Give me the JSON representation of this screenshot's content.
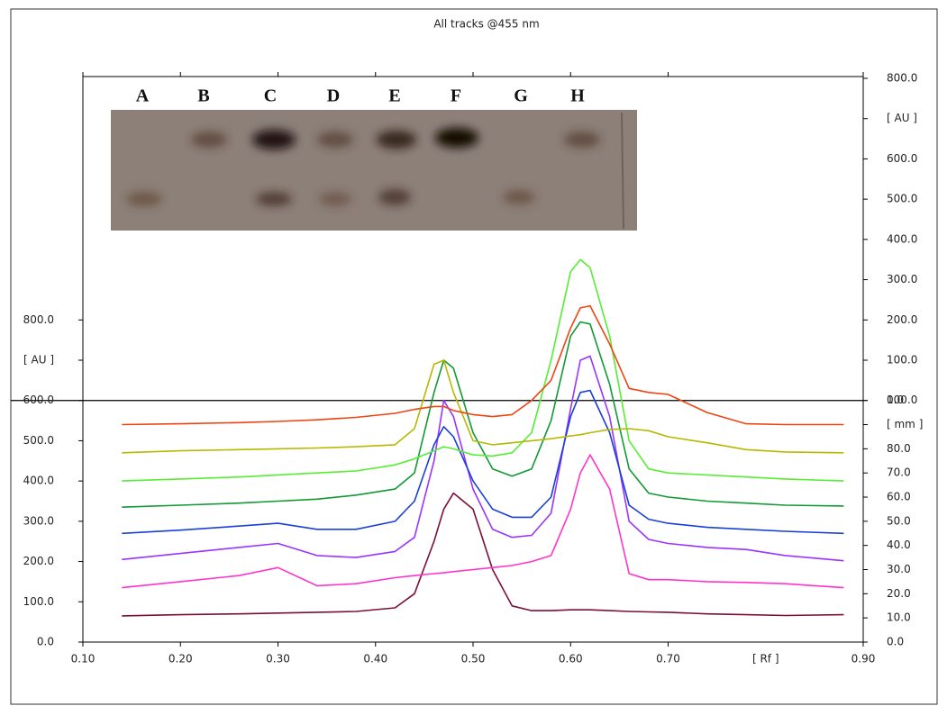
{
  "chart_data": {
    "type": "line",
    "title": "All tracks @455 nm",
    "x_axis_unit": "[ Rf ]",
    "x": [
      0.14,
      0.2,
      0.26,
      0.3,
      0.34,
      0.38,
      0.42,
      0.44,
      0.46,
      0.47,
      0.48,
      0.5,
      0.52,
      0.54,
      0.56,
      0.58,
      0.6,
      0.61,
      0.62,
      0.64,
      0.66,
      0.68,
      0.7,
      0.74,
      0.78,
      0.82,
      0.88
    ],
    "series": [
      {
        "color": "#7a0f3a",
        "values": [
          65,
          68,
          70,
          72,
          74,
          76,
          85,
          120,
          250,
          330,
          370,
          330,
          180,
          90,
          78,
          78,
          80,
          80,
          80,
          78,
          76,
          75,
          74,
          70,
          68,
          66,
          68
        ]
      },
      {
        "color": "#ff33cc",
        "values": [
          135,
          150,
          165,
          185,
          140,
          145,
          160,
          165,
          170,
          172,
          175,
          180,
          185,
          190,
          200,
          215,
          330,
          420,
          465,
          380,
          170,
          155,
          155,
          150,
          148,
          145,
          135
        ]
      },
      {
        "color": "#9933ff",
        "values": [
          205,
          220,
          235,
          245,
          215,
          210,
          225,
          260,
          450,
          600,
          560,
          380,
          280,
          260,
          265,
          320,
          580,
          700,
          710,
          560,
          300,
          255,
          245,
          235,
          230,
          215,
          202
        ]
      },
      {
        "color": "#1a3fd6",
        "values": [
          270,
          278,
          288,
          295,
          280,
          280,
          300,
          350,
          490,
          535,
          510,
          400,
          330,
          310,
          310,
          360,
          560,
          620,
          625,
          520,
          340,
          305,
          295,
          285,
          280,
          275,
          270
        ]
      },
      {
        "color": "#119933",
        "values": [
          335,
          340,
          345,
          350,
          355,
          365,
          380,
          420,
          620,
          700,
          680,
          520,
          430,
          412,
          430,
          550,
          760,
          795,
          790,
          640,
          430,
          370,
          360,
          350,
          345,
          340,
          338
        ]
      },
      {
        "color": "#55ee33",
        "values": [
          400,
          405,
          410,
          415,
          420,
          425,
          440,
          455,
          475,
          485,
          480,
          465,
          462,
          470,
          520,
          700,
          920,
          950,
          930,
          760,
          500,
          430,
          420,
          415,
          410,
          405,
          400
        ]
      },
      {
        "color": "#b8b800",
        "values": [
          470,
          475,
          478,
          480,
          482,
          485,
          490,
          530,
          690,
          700,
          620,
          500,
          490,
          495,
          500,
          505,
          512,
          515,
          520,
          528,
          530,
          525,
          510,
          495,
          478,
          472,
          470
        ]
      },
      {
        "color": "#ee4411",
        "values": [
          540,
          542,
          545,
          548,
          552,
          558,
          568,
          578,
          585,
          585,
          575,
          565,
          560,
          565,
          600,
          650,
          780,
          830,
          835,
          740,
          630,
          620,
          615,
          570,
          542,
          540,
          540
        ]
      }
    ],
    "xlim": [
      0.1,
      0.9
    ],
    "xticks": [
      {
        "value": 0.1,
        "label": "0.10"
      },
      {
        "value": 0.2,
        "label": "0.20"
      },
      {
        "value": 0.3,
        "label": "0.30"
      },
      {
        "value": 0.4,
        "label": "0.40"
      },
      {
        "value": 0.5,
        "label": "0.50"
      },
      {
        "value": 0.6,
        "label": "0.60"
      },
      {
        "value": 0.7,
        "label": "0.70"
      },
      {
        "value": 0.9,
        "label": "0.90"
      }
    ],
    "x_unit_position": 0.8,
    "ylim": [
      0,
      1400
    ],
    "yticks": [
      {
        "value": 0,
        "label": "0.0"
      },
      {
        "value": 100,
        "label": "100.0"
      },
      {
        "value": 200,
        "label": "200.0"
      },
      {
        "value": 300,
        "label": "300.0"
      },
      {
        "value": 400,
        "label": "400.0"
      },
      {
        "value": 500,
        "label": "500.0"
      },
      {
        "value": 600,
        "label": "600.0"
      },
      {
        "value": 700,
        "label": "[ AU ]"
      },
      {
        "value": 800,
        "label": "800.0"
      }
    ],
    "y2lim": [
      0,
      100
    ],
    "y2ticks": [
      {
        "value": 0,
        "label": "0.0"
      },
      {
        "value": 10,
        "label": "10.0"
      },
      {
        "value": 20,
        "label": "20.0"
      },
      {
        "value": 30,
        "label": "30.0"
      },
      {
        "value": 40,
        "label": "40.0"
      },
      {
        "value": 50,
        "label": "50.0"
      },
      {
        "value": 60,
        "label": "60.0"
      },
      {
        "value": 70,
        "label": "70.0"
      },
      {
        "value": 80,
        "label": "80.0"
      },
      {
        "value": 90,
        "label": "[ mm ]"
      },
      {
        "value": 100,
        "label": "100.0"
      }
    ],
    "y3lim": [
      0,
      800
    ],
    "y3ticks": [
      {
        "value": 0,
        "label": "0.0"
      },
      {
        "value": 100,
        "label": "100.0"
      },
      {
        "value": 200,
        "label": "200.0"
      },
      {
        "value": 300,
        "label": "300.0"
      },
      {
        "value": 400,
        "label": "400.0"
      },
      {
        "value": 500,
        "label": "500.0"
      },
      {
        "value": 600,
        "label": "600.0"
      },
      {
        "value": 700,
        "label": "[ AU ]"
      },
      {
        "value": 800,
        "label": "800.0"
      }
    ],
    "plate_lanes": [
      "A",
      "B",
      "C",
      "D",
      "E",
      "F",
      "G",
      "H"
    ]
  }
}
